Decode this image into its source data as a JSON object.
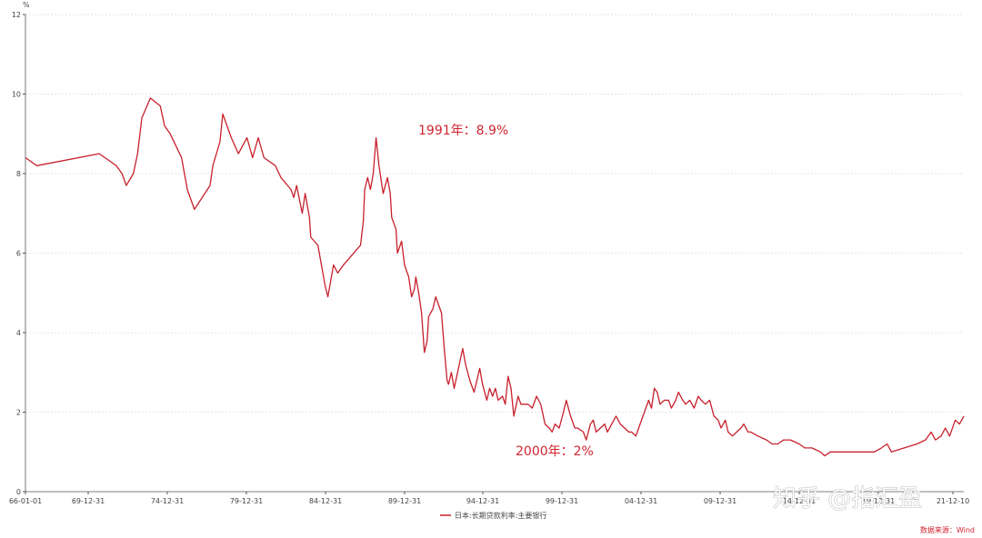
{
  "chart_data": {
    "type": "line",
    "ylabel": "%",
    "ylim": [
      0,
      12
    ],
    "yticks": [
      0,
      2,
      4,
      6,
      8,
      10,
      12
    ],
    "x_tick_labels": [
      "66-01-01",
      "69-12-31",
      "74-12-31",
      "79-12-31",
      "84-12-31",
      "89-12-31",
      "94-12-31",
      "99-12-31",
      "04-12-31",
      "09-12-31",
      "14-12-31",
      "19-12-31",
      "21-12-10"
    ],
    "grid": true,
    "legend_position": "bottom-center",
    "series": [
      {
        "name": "日本:长期贷款利率:主要银行",
        "color": "#c8202c",
        "points": [
          [
            1966.0,
            8.4
          ],
          [
            1966.8,
            8.2
          ],
          [
            1971.2,
            8.5
          ],
          [
            1972.4,
            8.2
          ],
          [
            1972.8,
            8.0
          ],
          [
            1973.1,
            7.7
          ],
          [
            1973.6,
            8.0
          ],
          [
            1973.9,
            8.5
          ],
          [
            1974.2,
            9.4
          ],
          [
            1974.8,
            9.9
          ],
          [
            1975.5,
            9.7
          ],
          [
            1975.8,
            9.2
          ],
          [
            1976.2,
            9.0
          ],
          [
            1977.0,
            8.4
          ],
          [
            1977.4,
            7.6
          ],
          [
            1977.9,
            7.1
          ],
          [
            1979.0,
            7.7
          ],
          [
            1979.2,
            8.2
          ],
          [
            1979.7,
            8.8
          ],
          [
            1979.9,
            9.5
          ],
          [
            1980.5,
            8.9
          ],
          [
            1981.0,
            8.5
          ],
          [
            1981.6,
            8.9
          ],
          [
            1982.0,
            8.4
          ],
          [
            1982.4,
            8.9
          ],
          [
            1982.8,
            8.4
          ],
          [
            1983.6,
            8.2
          ],
          [
            1984.0,
            7.9
          ],
          [
            1984.7,
            7.6
          ],
          [
            1984.9,
            7.4
          ],
          [
            1985.1,
            7.7
          ],
          [
            1985.5,
            7.0
          ],
          [
            1985.7,
            7.5
          ],
          [
            1986.0,
            6.9
          ],
          [
            1986.1,
            6.4
          ],
          [
            1986.6,
            6.2
          ],
          [
            1986.9,
            5.6
          ],
          [
            1987.1,
            5.2
          ],
          [
            1987.3,
            4.9
          ],
          [
            1987.7,
            5.7
          ],
          [
            1988.0,
            5.5
          ],
          [
            1988.4,
            5.7
          ],
          [
            1989.6,
            6.2
          ],
          [
            1989.8,
            6.8
          ],
          [
            1989.9,
            7.6
          ],
          [
            1990.1,
            7.9
          ],
          [
            1990.3,
            7.6
          ],
          [
            1990.5,
            8.0
          ],
          [
            1990.7,
            8.9
          ],
          [
            1990.9,
            8.2
          ],
          [
            1991.2,
            7.5
          ],
          [
            1991.5,
            7.9
          ],
          [
            1991.7,
            7.5
          ],
          [
            1991.8,
            6.9
          ],
          [
            1992.1,
            6.6
          ],
          [
            1992.2,
            6.0
          ],
          [
            1992.5,
            6.3
          ],
          [
            1992.7,
            5.7
          ],
          [
            1993.0,
            5.4
          ],
          [
            1993.2,
            4.9
          ],
          [
            1993.4,
            5.1
          ],
          [
            1993.5,
            5.4
          ],
          [
            1993.7,
            5.0
          ],
          [
            1993.9,
            4.5
          ],
          [
            1994.1,
            3.5
          ],
          [
            1994.3,
            3.8
          ],
          [
            1994.4,
            4.4
          ],
          [
            1994.7,
            4.6
          ],
          [
            1994.9,
            4.9
          ],
          [
            1995.1,
            4.7
          ],
          [
            1995.3,
            4.5
          ],
          [
            1995.5,
            3.6
          ],
          [
            1995.7,
            2.8
          ],
          [
            1995.8,
            2.7
          ],
          [
            1996.0,
            3.0
          ],
          [
            1996.2,
            2.6
          ],
          [
            1996.5,
            3.1
          ],
          [
            1996.8,
            3.6
          ],
          [
            1997.0,
            3.2
          ],
          [
            1997.3,
            2.8
          ],
          [
            1997.6,
            2.5
          ],
          [
            1997.8,
            2.8
          ],
          [
            1998.0,
            3.1
          ],
          [
            1998.2,
            2.7
          ],
          [
            1998.5,
            2.3
          ],
          [
            1998.7,
            2.6
          ],
          [
            1998.9,
            2.4
          ],
          [
            1999.1,
            2.6
          ],
          [
            1999.3,
            2.3
          ],
          [
            1999.6,
            2.4
          ],
          [
            1999.8,
            2.2
          ],
          [
            2000.0,
            2.9
          ],
          [
            2000.2,
            2.6
          ],
          [
            2000.4,
            1.9
          ],
          [
            2000.7,
            2.4
          ],
          [
            2000.9,
            2.2
          ],
          [
            2001.4,
            2.2
          ],
          [
            2001.7,
            2.1
          ],
          [
            2002.0,
            2.4
          ],
          [
            2002.3,
            2.2
          ],
          [
            2002.6,
            1.7
          ],
          [
            2002.9,
            1.6
          ],
          [
            2003.1,
            1.5
          ],
          [
            2003.3,
            1.7
          ],
          [
            2003.6,
            1.6
          ],
          [
            2003.9,
            2.0
          ],
          [
            2004.1,
            2.3
          ],
          [
            2004.4,
            1.9
          ],
          [
            2004.7,
            1.6
          ],
          [
            2004.9,
            1.6
          ],
          [
            2005.3,
            1.5
          ],
          [
            2005.5,
            1.3
          ],
          [
            2005.8,
            1.7
          ],
          [
            2006.0,
            1.8
          ],
          [
            2006.2,
            1.5
          ],
          [
            2006.5,
            1.6
          ],
          [
            2006.8,
            1.7
          ],
          [
            2007.0,
            1.5
          ],
          [
            2007.3,
            1.7
          ],
          [
            2007.6,
            1.9
          ],
          [
            2007.9,
            1.7
          ],
          [
            2008.2,
            1.6
          ],
          [
            2008.5,
            1.5
          ],
          [
            2008.7,
            1.5
          ],
          [
            2009.0,
            1.4
          ],
          [
            2009.3,
            1.7
          ],
          [
            2009.6,
            2.0
          ],
          [
            2009.9,
            2.3
          ],
          [
            2010.1,
            2.1
          ],
          [
            2010.3,
            2.6
          ],
          [
            2010.5,
            2.5
          ],
          [
            2010.7,
            2.2
          ],
          [
            2011.0,
            2.3
          ],
          [
            2011.3,
            2.3
          ],
          [
            2011.5,
            2.1
          ],
          [
            2011.8,
            2.3
          ],
          [
            2012.0,
            2.5
          ],
          [
            2012.3,
            2.3
          ],
          [
            2012.5,
            2.2
          ],
          [
            2012.8,
            2.3
          ],
          [
            2013.1,
            2.1
          ],
          [
            2013.4,
            2.4
          ],
          [
            2013.6,
            2.3
          ],
          [
            2013.9,
            2.2
          ],
          [
            2014.2,
            2.3
          ],
          [
            2014.5,
            1.9
          ],
          [
            2014.8,
            1.8
          ],
          [
            2015.0,
            1.6
          ],
          [
            2015.3,
            1.8
          ],
          [
            2015.5,
            1.5
          ],
          [
            2015.8,
            1.4
          ],
          [
            2016.1,
            1.5
          ],
          [
            2016.4,
            1.6
          ],
          [
            2016.6,
            1.7
          ],
          [
            2016.9,
            1.5
          ],
          [
            2017.1,
            1.5
          ],
          [
            2017.6,
            1.4
          ],
          [
            2018.2,
            1.3
          ],
          [
            2018.6,
            1.2
          ],
          [
            2019.0,
            1.2
          ],
          [
            2019.4,
            1.3
          ],
          [
            2019.9,
            1.3
          ],
          [
            2020.5,
            1.2
          ],
          [
            2020.9,
            1.1
          ],
          [
            2021.4,
            1.1
          ],
          [
            2022.0,
            1.0
          ],
          [
            2022.3,
            0.9
          ],
          [
            2022.7,
            1.0
          ],
          [
            2023.8,
            1.0
          ],
          [
            2025.8,
            1.0
          ],
          [
            2026.3,
            1.1
          ],
          [
            2026.7,
            1.2
          ],
          [
            2027.0,
            1.0
          ],
          [
            2028.8,
            1.2
          ],
          [
            2029.4,
            1.3
          ],
          [
            2029.8,
            1.5
          ],
          [
            2030.1,
            1.3
          ],
          [
            2030.5,
            1.4
          ],
          [
            2030.8,
            1.6
          ],
          [
            2031.1,
            1.4
          ],
          [
            2031.5,
            1.8
          ],
          [
            2031.8,
            1.7
          ],
          [
            2032.1,
            1.9
          ]
        ]
      }
    ],
    "annotations": [
      {
        "text": "1991年：8.9%"
      },
      {
        "text": "2000年：2%"
      }
    ],
    "source_note": "数据来源：Wind"
  },
  "watermark": "知乎 @指汇盈"
}
